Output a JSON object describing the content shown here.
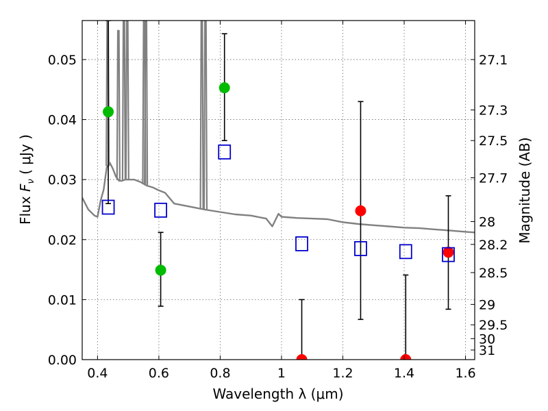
{
  "chart_data": {
    "type": "scatter",
    "xlabel": "Wavelength  λ (μm)",
    "ylabel_prefix": "Flux ",
    "ylabel_var": "F",
    "ylabel_sub": "ν",
    "ylabel_suffix": " ( μJy )",
    "ylabel_right": "Magnitude (AB)",
    "xlim": [
      0.35,
      1.63
    ],
    "ylim": [
      0.0,
      0.0565
    ],
    "grid": true,
    "x_ticks": [
      {
        "v": 0.4,
        "label": "0.4"
      },
      {
        "v": 0.6,
        "label": "0.6"
      },
      {
        "v": 0.8,
        "label": "0.8"
      },
      {
        "v": 1.0,
        "label": "1"
      },
      {
        "v": 1.2,
        "label": "1.2"
      },
      {
        "v": 1.4,
        "label": "1.4"
      },
      {
        "v": 1.6,
        "label": "1.6"
      }
    ],
    "y_ticks": [
      {
        "v": 0.0,
        "label": "0.00"
      },
      {
        "v": 0.01,
        "label": "0.01"
      },
      {
        "v": 0.02,
        "label": "0.02"
      },
      {
        "v": 0.03,
        "label": "0.03"
      },
      {
        "v": 0.04,
        "label": "0.04"
      },
      {
        "v": 0.05,
        "label": "0.05"
      }
    ],
    "right_ticks": [
      {
        "flux": 0.05,
        "label": "27.1"
      },
      {
        "flux": 0.0416,
        "label": "27.3"
      },
      {
        "flux": 0.0365,
        "label": "27.5"
      },
      {
        "flux": 0.0303,
        "label": "27.7"
      },
      {
        "flux": 0.023,
        "label": "28"
      },
      {
        "flux": 0.0192,
        "label": "28.2"
      },
      {
        "flux": 0.0145,
        "label": "28.5"
      },
      {
        "flux": 0.0092,
        "label": "29"
      },
      {
        "flux": 0.0058,
        "label": "29.5"
      },
      {
        "flux": 0.0035,
        "label": "30"
      },
      {
        "flux": 0.0016,
        "label": "31"
      }
    ],
    "colors": {
      "model": "#808080",
      "green": "#00bb00",
      "red": "#ff0000",
      "box": "#0000cc",
      "errorbar": "#000000"
    },
    "model_spectrum": {
      "name": "",
      "x": [
        0.35,
        0.37,
        0.39,
        0.4,
        0.41,
        0.42,
        0.43,
        0.44,
        0.45,
        0.46,
        0.47,
        0.48,
        0.49,
        0.5,
        0.52,
        0.54,
        0.56,
        0.58,
        0.6,
        0.62,
        0.65,
        0.7,
        0.75,
        0.8,
        0.85,
        0.9,
        0.95,
        0.97,
        0.99,
        1.0,
        1.05,
        1.1,
        1.15,
        1.2,
        1.25,
        1.3,
        1.35,
        1.4,
        1.45,
        1.5,
        1.55,
        1.6,
        1.63
      ],
      "y": [
        0.027,
        0.025,
        0.024,
        0.0238,
        0.0265,
        0.0283,
        0.032,
        0.0328,
        0.0318,
        0.0305,
        0.0298,
        0.0298,
        0.03,
        0.03,
        0.03,
        0.0296,
        0.029,
        0.0287,
        0.0282,
        0.0278,
        0.026,
        0.0255,
        0.025,
        0.0246,
        0.0242,
        0.024,
        0.0235,
        0.0222,
        0.0243,
        0.0238,
        0.0236,
        0.0235,
        0.0234,
        0.0229,
        0.0226,
        0.0224,
        0.0222,
        0.022,
        0.0219,
        0.0217,
        0.0215,
        0.0213,
        0.0212
      ]
    },
    "emission_lines": [
      {
        "x": 0.433,
        "peak": 0.0565
      },
      {
        "x": 0.468,
        "peak": 0.0548
      },
      {
        "x": 0.486,
        "peak": 0.0565
      },
      {
        "x": 0.497,
        "peak": 0.0565
      },
      {
        "x": 0.552,
        "peak": 0.0565
      },
      {
        "x": 0.558,
        "peak": 0.0565
      },
      {
        "x": 0.74,
        "peak": 0.0565
      },
      {
        "x": 0.752,
        "peak": 0.0565
      }
    ],
    "series": [
      {
        "kind": "observed-green",
        "points": [
          {
            "x": 0.435,
            "y": 0.0413,
            "lo": 0.026,
            "hi": 0.0565
          },
          {
            "x": 0.606,
            "y": 0.0149,
            "lo": 0.0089,
            "hi": 0.0212
          },
          {
            "x": 0.814,
            "y": 0.0453,
            "lo": 0.0365,
            "hi": 0.0543
          }
        ]
      },
      {
        "kind": "observed-red",
        "points": [
          {
            "x": 1.066,
            "y": 0.0,
            "lo": 0.0,
            "hi": 0.01
          },
          {
            "x": 1.258,
            "y": 0.0248,
            "lo": 0.0067,
            "hi": 0.043
          },
          {
            "x": 1.405,
            "y": 0.0,
            "lo": 0.0,
            "hi": 0.0141
          },
          {
            "x": 1.544,
            "y": 0.0179,
            "lo": 0.0084,
            "hi": 0.0273
          }
        ]
      },
      {
        "kind": "model-boxes",
        "points": [
          {
            "x": 0.435,
            "y": 0.0254
          },
          {
            "x": 0.606,
            "y": 0.0249
          },
          {
            "x": 0.814,
            "y": 0.0346
          },
          {
            "x": 1.066,
            "y": 0.0193
          },
          {
            "x": 1.258,
            "y": 0.0185
          },
          {
            "x": 1.405,
            "y": 0.018
          },
          {
            "x": 1.544,
            "y": 0.0175
          }
        ]
      }
    ]
  }
}
